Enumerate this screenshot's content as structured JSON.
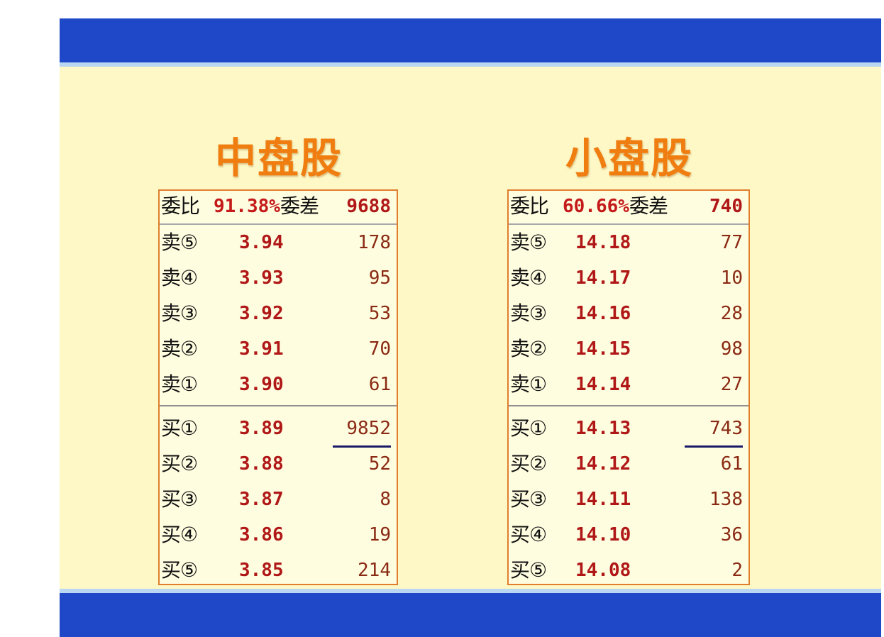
{
  "panels": [
    {
      "title": "中盘股",
      "ratio_label": "委比",
      "ratio": "91.38%",
      "diff_label": "委差",
      "diff": "9688",
      "asks": [
        {
          "label": "卖⑤",
          "price": "3.94",
          "volume": "178"
        },
        {
          "label": "卖④",
          "price": "3.93",
          "volume": "95"
        },
        {
          "label": "卖③",
          "price": "3.92",
          "volume": "53"
        },
        {
          "label": "卖②",
          "price": "3.91",
          "volume": "70"
        },
        {
          "label": "卖①",
          "price": "3.90",
          "volume": "61"
        }
      ],
      "bids": [
        {
          "label": "买①",
          "price": "3.89",
          "volume": "9852"
        },
        {
          "label": "买②",
          "price": "3.88",
          "volume": "52"
        },
        {
          "label": "买③",
          "price": "3.87",
          "volume": "8"
        },
        {
          "label": "买④",
          "price": "3.86",
          "volume": "19"
        },
        {
          "label": "买⑤",
          "price": "3.85",
          "volume": "214"
        }
      ]
    },
    {
      "title": "小盘股",
      "ratio_label": "委比",
      "ratio": "60.66%",
      "diff_label": "委差",
      "diff": "740",
      "asks": [
        {
          "label": "卖⑤",
          "price": "14.18",
          "volume": "77"
        },
        {
          "label": "卖④",
          "price": "14.17",
          "volume": "10"
        },
        {
          "label": "卖③",
          "price": "14.16",
          "volume": "28"
        },
        {
          "label": "卖②",
          "price": "14.15",
          "volume": "98"
        },
        {
          "label": "卖①",
          "price": "14.14",
          "volume": "27"
        }
      ],
      "bids": [
        {
          "label": "买①",
          "price": "14.13",
          "volume": "743"
        },
        {
          "label": "买②",
          "price": "14.12",
          "volume": "61"
        },
        {
          "label": "买③",
          "price": "14.11",
          "volume": "138"
        },
        {
          "label": "买④",
          "price": "14.10",
          "volume": "36"
        },
        {
          "label": "买⑤",
          "price": "14.08",
          "volume": "2"
        }
      ]
    }
  ]
}
